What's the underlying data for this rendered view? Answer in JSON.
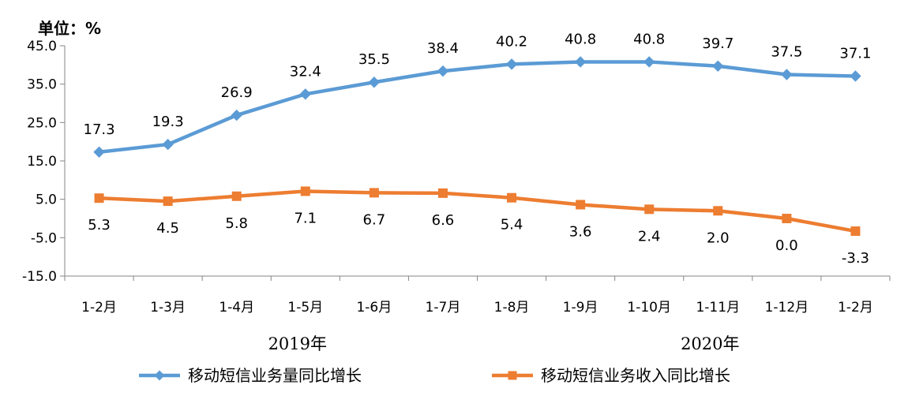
{
  "unit_label": "单位：%",
  "chart_data": {
    "type": "line",
    "categories": [
      "1-2月",
      "1-3月",
      "1-4月",
      "1-5月",
      "1-6月",
      "1-7月",
      "1-8月",
      "1-9月",
      "1-10月",
      "1-11月",
      "1-12月",
      "1-2月"
    ],
    "year_groups": [
      {
        "label": "2019年",
        "start": 0,
        "end": 10
      },
      {
        "label": "2020年",
        "start": 11,
        "end": 11
      }
    ],
    "ylim": [
      -15.0,
      45.0
    ],
    "yticks": [
      "45.0",
      "35.0",
      "25.0",
      "15.0",
      "5.0",
      "-5.0",
      "-15.0"
    ],
    "ytick_values": [
      45,
      35,
      25,
      15,
      5,
      -5,
      -15
    ],
    "grid": false,
    "legend_position": "bottom",
    "series": [
      {
        "name": "移动短信业务量同比增长",
        "color": "#5B9BD5",
        "marker": "diamond",
        "values": [
          17.3,
          19.3,
          26.9,
          32.4,
          35.5,
          38.4,
          40.2,
          40.8,
          40.8,
          39.7,
          37.5,
          37.1
        ],
        "labels": [
          "17.3",
          "19.3",
          "26.9",
          "32.4",
          "35.5",
          "38.4",
          "40.2",
          "40.8",
          "40.8",
          "39.7",
          "37.5",
          "37.1"
        ]
      },
      {
        "name": "移动短信业务收入同比增长",
        "color": "#ED7D31",
        "marker": "square",
        "values": [
          5.3,
          4.5,
          5.8,
          7.1,
          6.7,
          6.6,
          5.4,
          3.6,
          2.4,
          2.0,
          0.0,
          -3.3
        ],
        "labels": [
          "5.3",
          "4.5",
          "5.8",
          "7.1",
          "6.7",
          "6.6",
          "5.4",
          "3.6",
          "2.4",
          "2.0",
          "0.0",
          "-3.3"
        ]
      }
    ]
  }
}
